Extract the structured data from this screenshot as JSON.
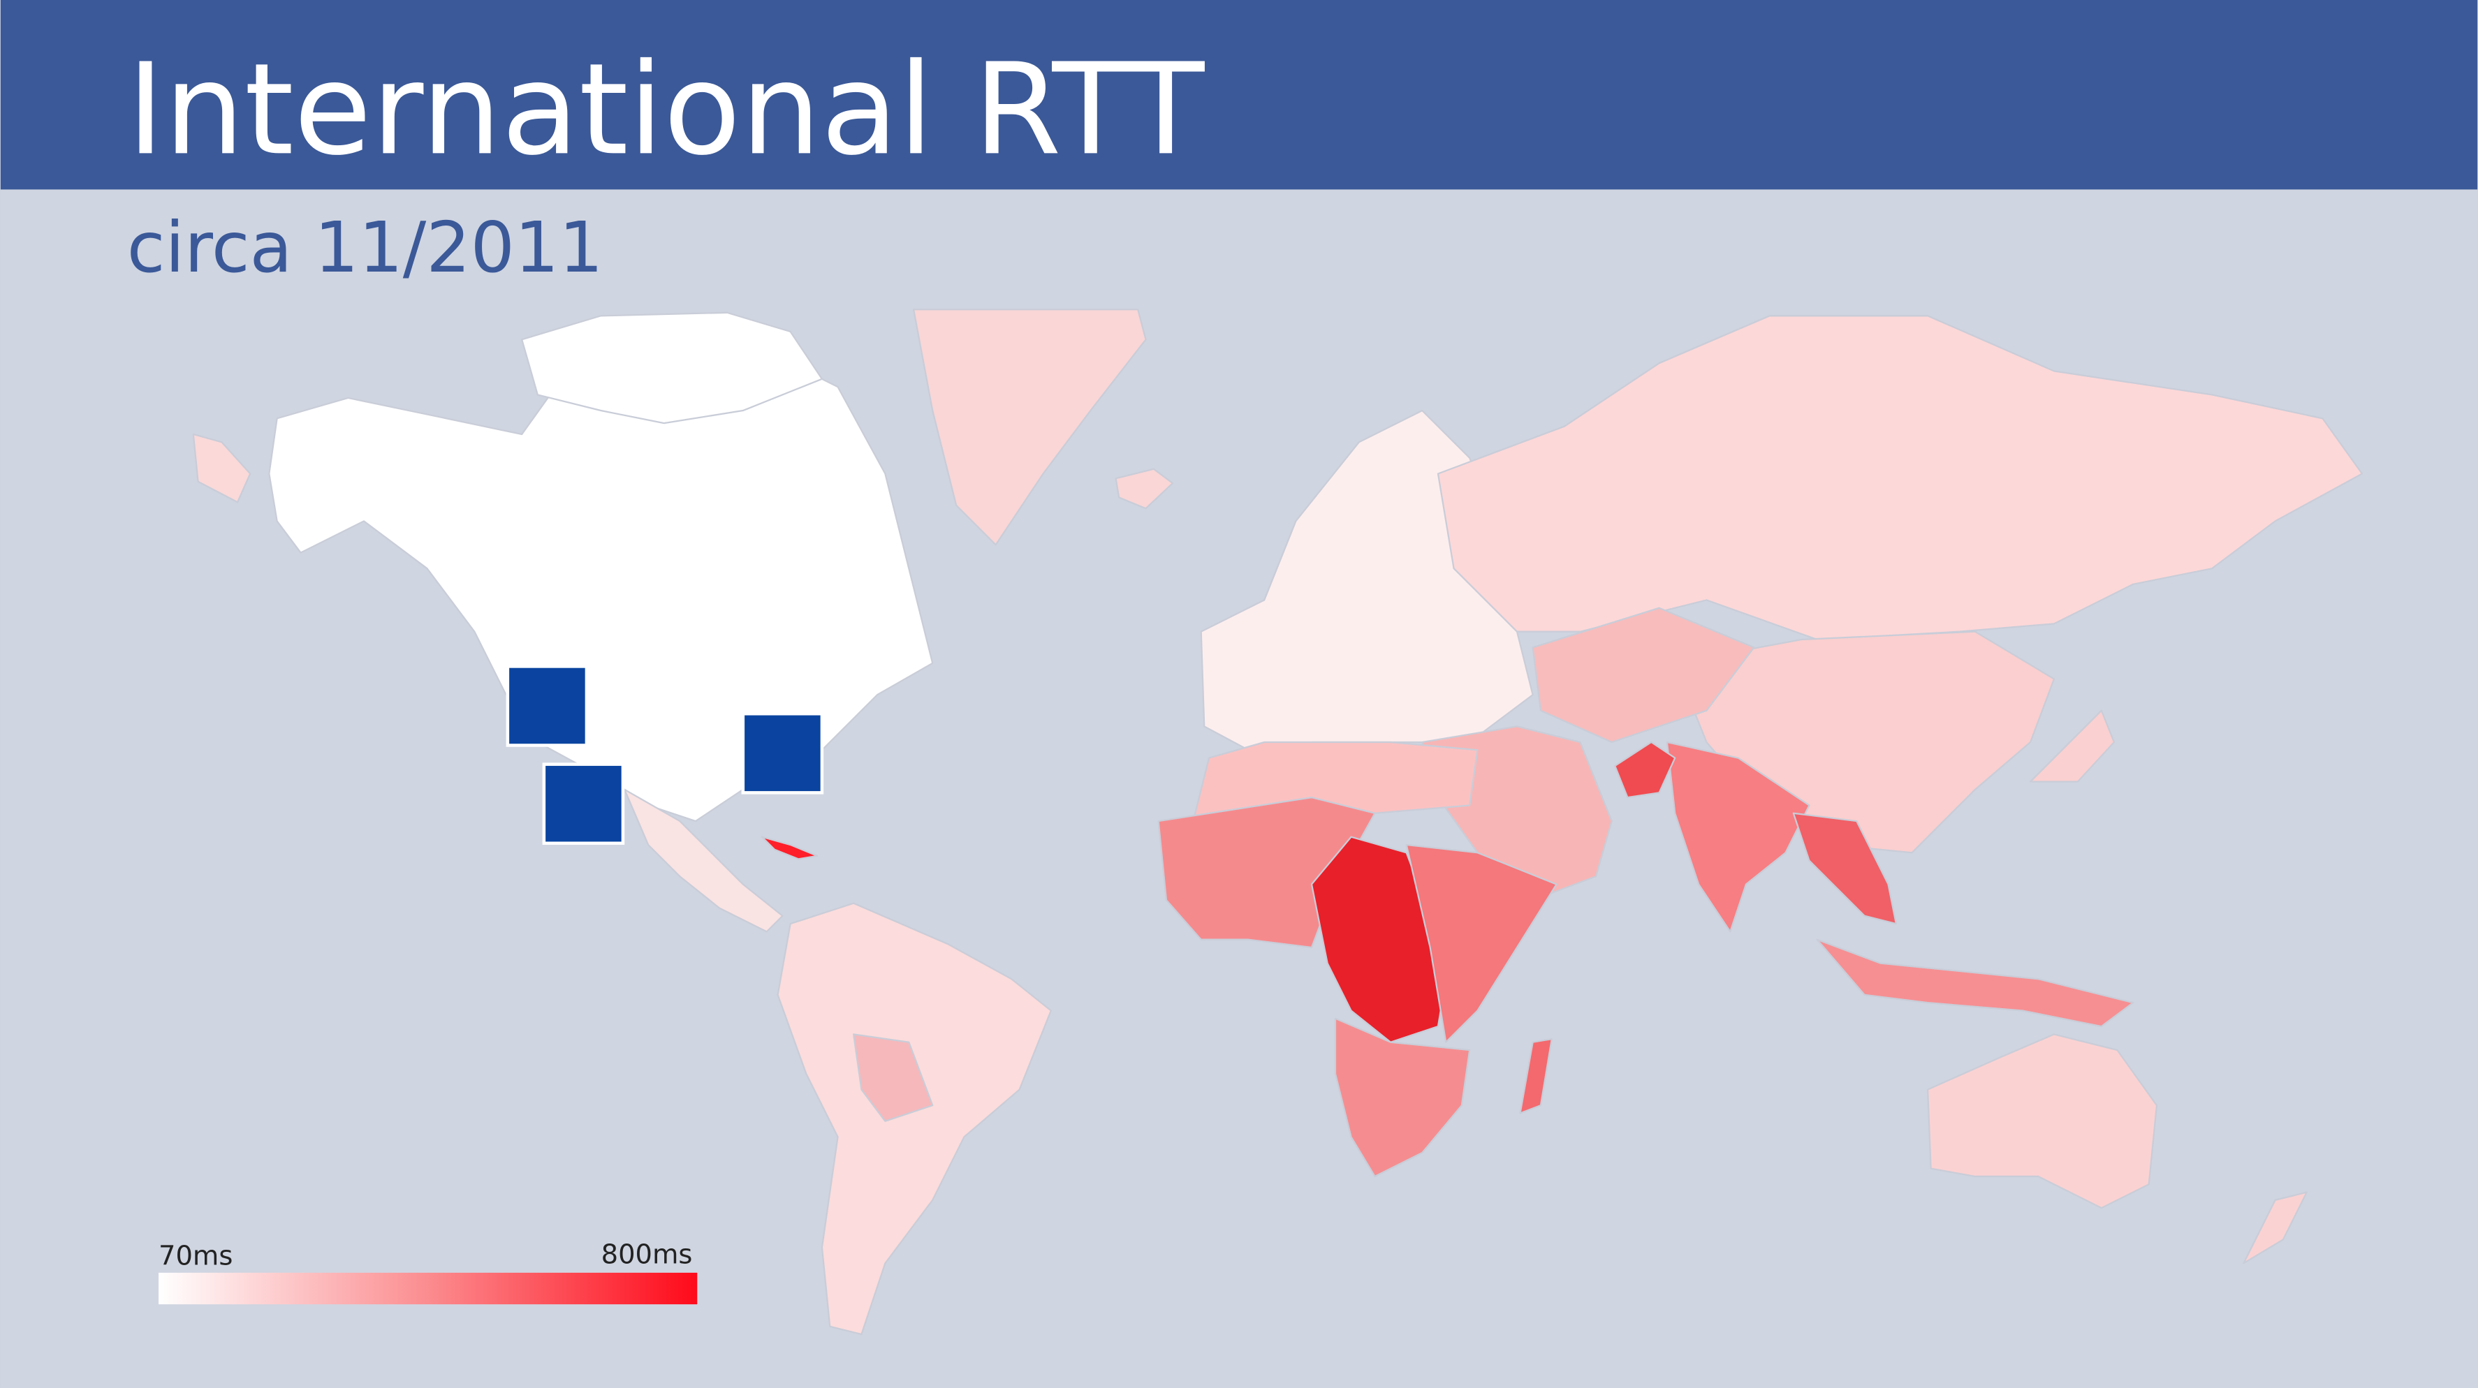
{
  "header": {
    "title": "International RTT",
    "subtitle": "circa 11/2011"
  },
  "legend": {
    "min_label": "70ms",
    "max_label": "800ms"
  }
}
